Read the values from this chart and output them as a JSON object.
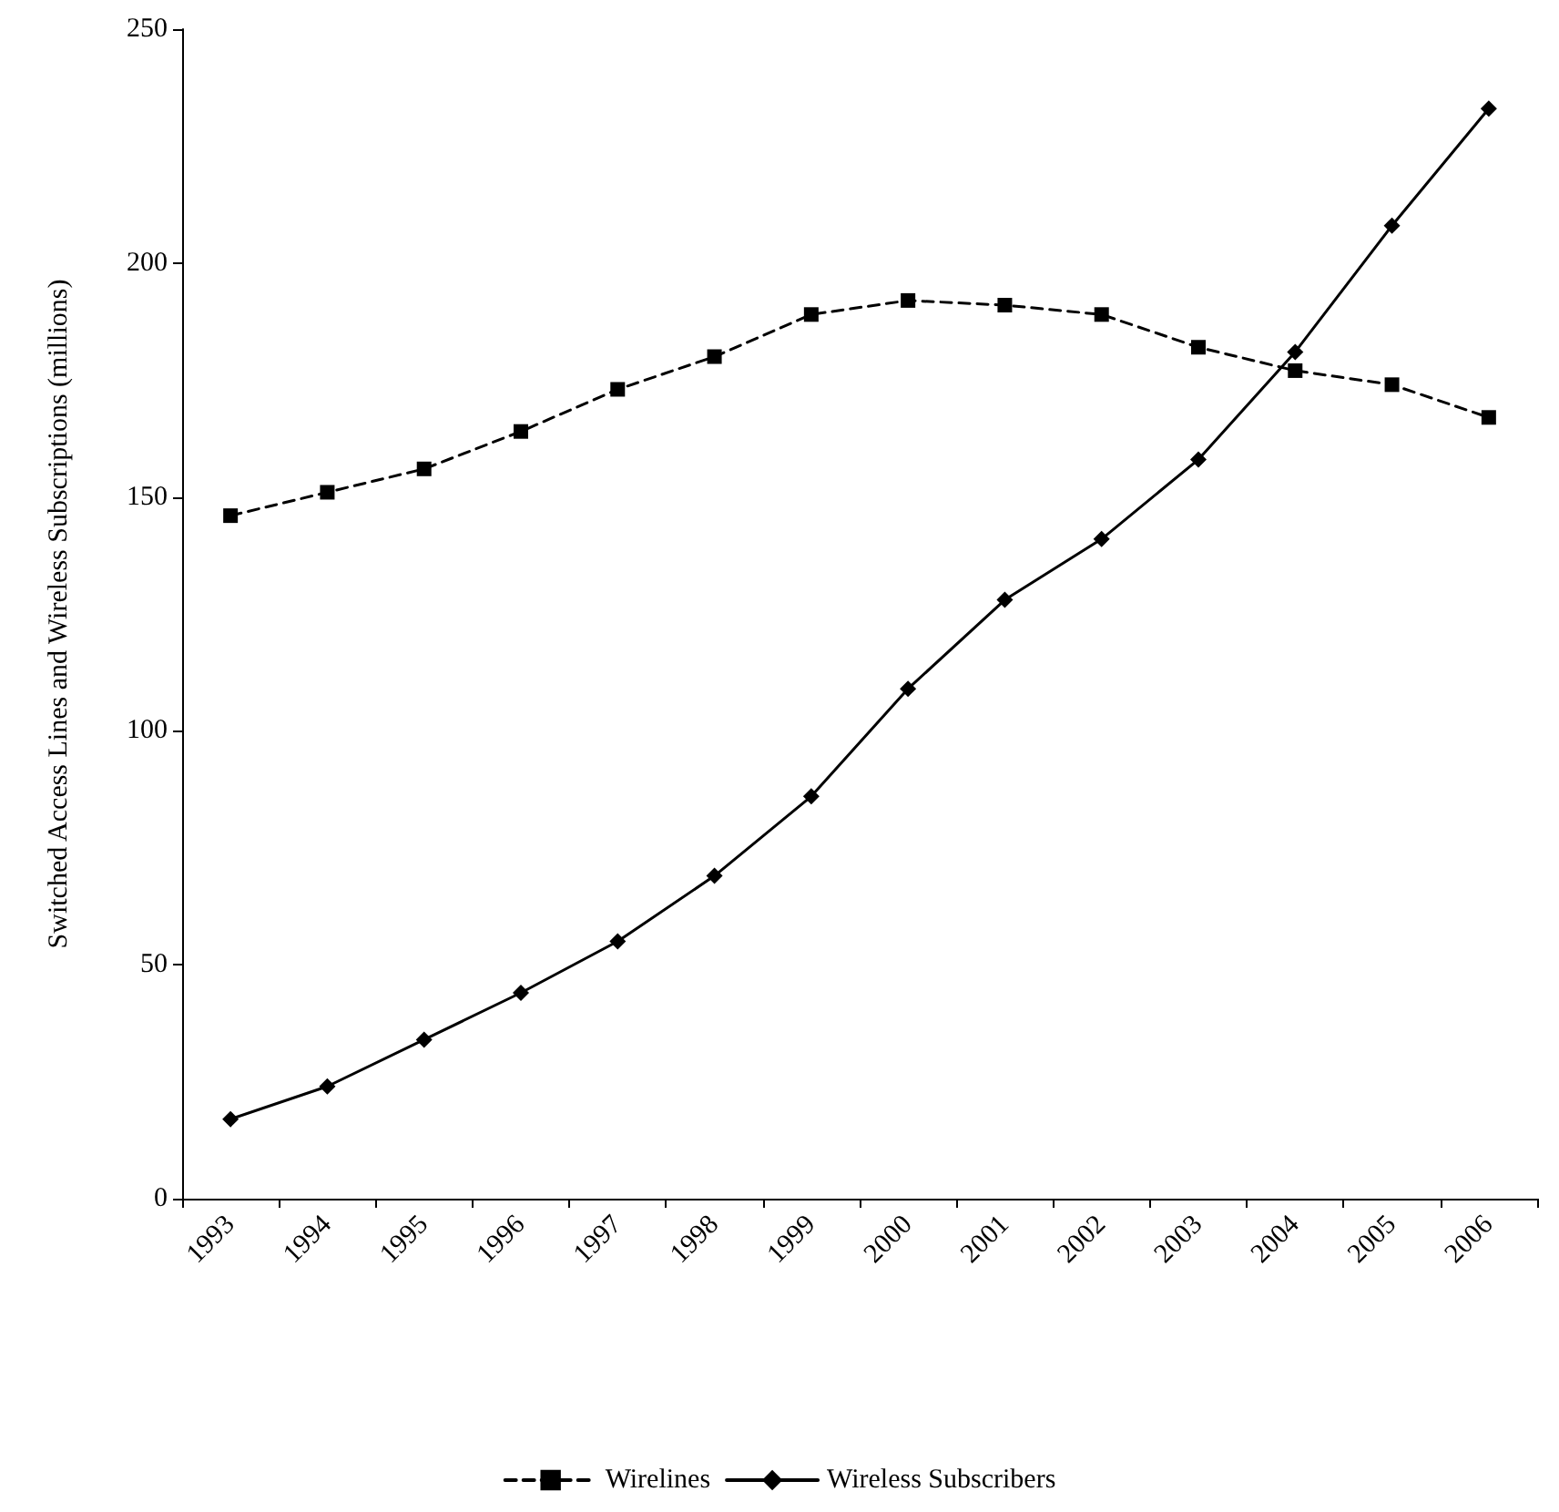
{
  "chart_data": {
    "type": "line",
    "ylabel": "Switched Access Lines and Wireless Subscriptions (millions)",
    "categories": [
      "1993",
      "1994",
      "1995",
      "1996",
      "1997",
      "1998",
      "1999",
      "2000",
      "2001",
      "2002",
      "2003",
      "2004",
      "2005",
      "2006"
    ],
    "series": [
      {
        "name": "Wirelines",
        "color": "#000000",
        "marker": "square",
        "line_style": "dashed",
        "values": [
          146,
          151,
          156,
          164,
          173,
          180,
          189,
          192,
          191,
          189,
          182,
          177,
          174,
          167
        ]
      },
      {
        "name": "Wireless Subscribers",
        "color": "#000000",
        "marker": "diamond",
        "line_style": "solid",
        "values": [
          17,
          24,
          34,
          44,
          55,
          69,
          86,
          109,
          128,
          141,
          158,
          181,
          208,
          233
        ]
      }
    ],
    "ylim": [
      0,
      250
    ],
    "yticks": [
      0,
      50,
      100,
      150,
      200,
      250
    ],
    "grid": false,
    "legend": "bottom"
  }
}
